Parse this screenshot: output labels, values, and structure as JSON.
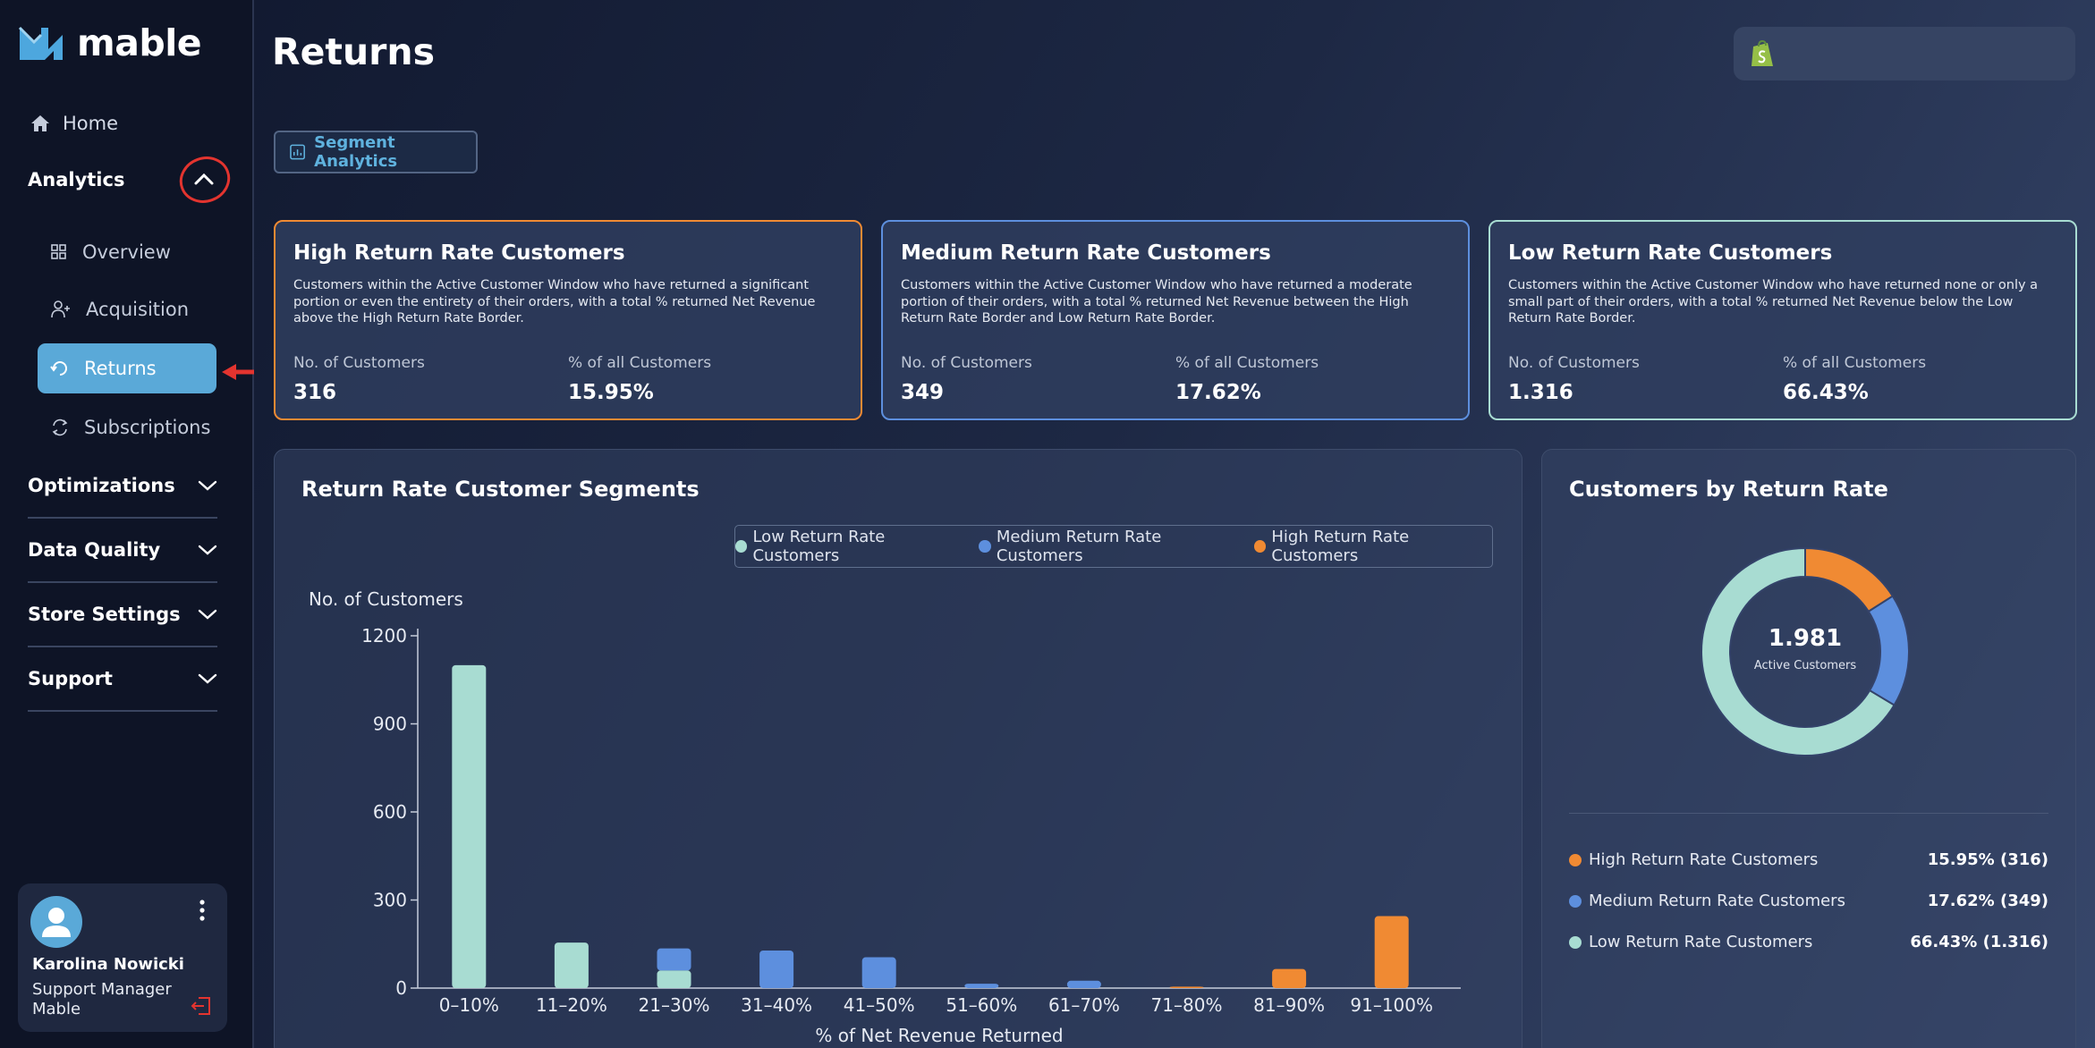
{
  "app": {
    "brand": "mable"
  },
  "sidebar": {
    "home": "Home",
    "analytics": "Analytics",
    "sub": [
      {
        "label": "Overview",
        "icon": "grid-icon"
      },
      {
        "label": "Acquisition",
        "icon": "user-plus-icon"
      },
      {
        "label": "Returns",
        "icon": "return-icon",
        "active": true
      },
      {
        "label": "Subscriptions",
        "icon": "subscription-icon"
      }
    ],
    "sections": [
      "Optimizations",
      "Data Quality",
      "Store Settings",
      "Support"
    ]
  },
  "user": {
    "name": "Karolina Nowicki",
    "role": "Support Manager",
    "company": "Mable"
  },
  "page": {
    "title": "Returns",
    "segment_button": "Segment Analytics"
  },
  "cards": [
    {
      "title": "High Return Rate Customers",
      "desc": "Customers within the Active Customer Window who have returned a significant portion or even the entirety of their orders, with a total % returned Net Revenue above the High Return Rate Border.",
      "label1": "No. of Customers",
      "value1": "316",
      "label2": "% of all Customers",
      "value2": "15.95%",
      "color": "#f08a33"
    },
    {
      "title": "Medium Return Rate Customers",
      "desc": "Customers within the Active Customer Window who have returned a moderate portion of their orders, with a total % returned Net Revenue between the High Return Rate Border and Low Return Rate Border.",
      "label1": "No. of Customers",
      "value1": "349",
      "label2": "% of all Customers",
      "value2": "17.62%",
      "color": "#5d8fde"
    },
    {
      "title": "Low Return Rate Customers",
      "desc": "Customers within the Active Customer Window who have returned none or only a small part of their orders, with a total % returned Net Revenue below the Low Return Rate Border.",
      "label1": "No. of Customers",
      "value1": "1.316",
      "label2": "% of all Customers",
      "value2": "66.43%",
      "color": "#a8dcd2"
    }
  ],
  "chart_data": [
    {
      "type": "bar",
      "title": "Return Rate Customer Segments",
      "ylabel": "No. of Customers",
      "xlabel": "% of Net Revenue Returned",
      "ylim": [
        0,
        1200
      ],
      "yticks": [
        "1200",
        "900",
        "600",
        "300",
        "0"
      ],
      "categories": [
        "0–10%",
        "11–20%",
        "21–30%",
        "31–40%",
        "41–50%",
        "51–60%",
        "61–70%",
        "71–80%",
        "81–90%",
        "91–100%"
      ],
      "stacked": true,
      "legend": "top-right",
      "series": [
        {
          "name": "Low Return Rate Customers",
          "color": "#a8dcd2",
          "values": [
            1100,
            155,
            60,
            0,
            0,
            0,
            0,
            0,
            0,
            0
          ]
        },
        {
          "name": "Medium Return Rate Customers",
          "color": "#5d8fde",
          "values": [
            0,
            0,
            75,
            128,
            105,
            15,
            25,
            0,
            0,
            0
          ]
        },
        {
          "name": "High Return Rate Customers",
          "color": "#f08a33",
          "values": [
            0,
            0,
            0,
            0,
            0,
            0,
            0,
            5,
            65,
            245
          ]
        }
      ]
    },
    {
      "type": "pie",
      "title": "Customers by Return Rate",
      "center_value": "1.981",
      "center_label": "Active Customers",
      "slices": [
        {
          "name": "High Return Rate Customers",
          "value": 316,
          "pct": "15.95% (316)",
          "color": "#f08a33"
        },
        {
          "name": "Medium Return Rate Customers",
          "value": 349,
          "pct": "17.62% (349)",
          "color": "#5d8fde"
        },
        {
          "name": "Low Return Rate Customers",
          "value": 1316,
          "pct": "66.43% (1.316)",
          "color": "#a8dcd2"
        }
      ]
    }
  ],
  "colors": {
    "accent": "#5aa9d8",
    "annotation": "#e3342f"
  }
}
